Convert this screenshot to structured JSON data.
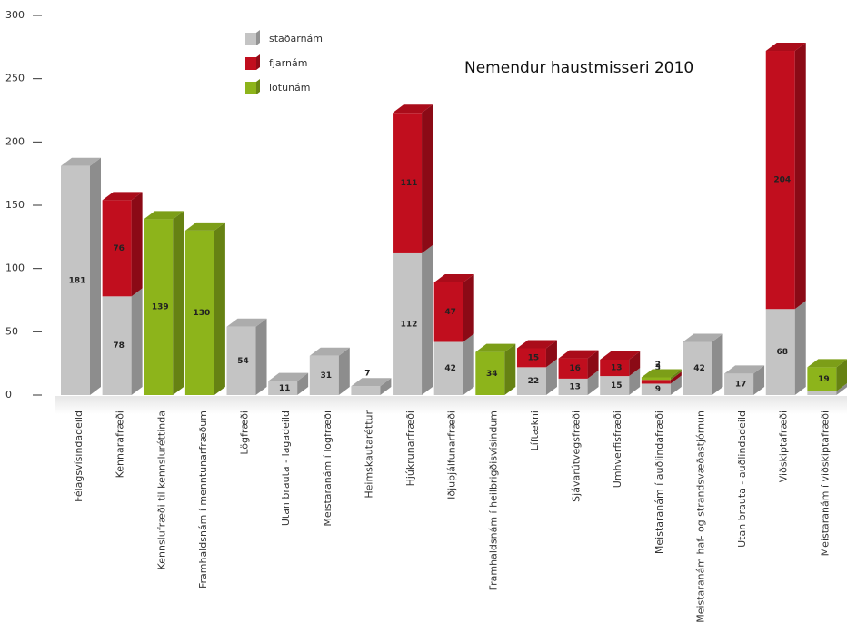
{
  "chart_data": {
    "type": "bar3d_stacked",
    "title": "Nemendur haustmisseri 2010",
    "categories": [
      "Félagsvísindadeild",
      "Kennarafræði",
      "Kennslufræði til kennsluréttinda",
      "Framhaldsnám í menntunarfræðum",
      "Lögfræði",
      "Utan brauta - lagadeild",
      "Meistaranám í lögfræði",
      "Heimskautaréttur",
      "Hjúkrunarfræði",
      "Iðjuþjálfunarfræði",
      "Framhaldsnám í heilbrigðisvísindum",
      "Líftækni",
      "Sjávarútvegsfræði",
      "Umhverfisfræði",
      "Meistaranám í auðlindafræði",
      "Meistaranám haf- og strandsvæðastjórnun",
      "Utan brauta - auðlindadeild",
      "Viðskiptafræði",
      "Meistaranám í viðskiptafræði"
    ],
    "series": [
      {
        "name": "staðarnám",
        "color": "#c4c4c4",
        "values": [
          181,
          78,
          null,
          null,
          54,
          11,
          31,
          7,
          112,
          42,
          null,
          22,
          13,
          15,
          9,
          42,
          17,
          68,
          3
        ]
      },
      {
        "name": "fjarnám",
        "color": "#c10e1e",
        "values": [
          null,
          76,
          null,
          null,
          null,
          null,
          null,
          null,
          111,
          47,
          null,
          15,
          16,
          13,
          3,
          null,
          null,
          204,
          null
        ]
      },
      {
        "name": "lotunám",
        "color": "#8db41b",
        "values": [
          null,
          null,
          139,
          130,
          null,
          null,
          null,
          null,
          null,
          null,
          34,
          null,
          null,
          null,
          2,
          null,
          null,
          null,
          19
        ]
      }
    ],
    "ylim": [
      0,
      300
    ],
    "yticks": [
      0,
      50,
      100,
      150,
      200,
      250,
      300
    ],
    "legend": "top-center"
  }
}
